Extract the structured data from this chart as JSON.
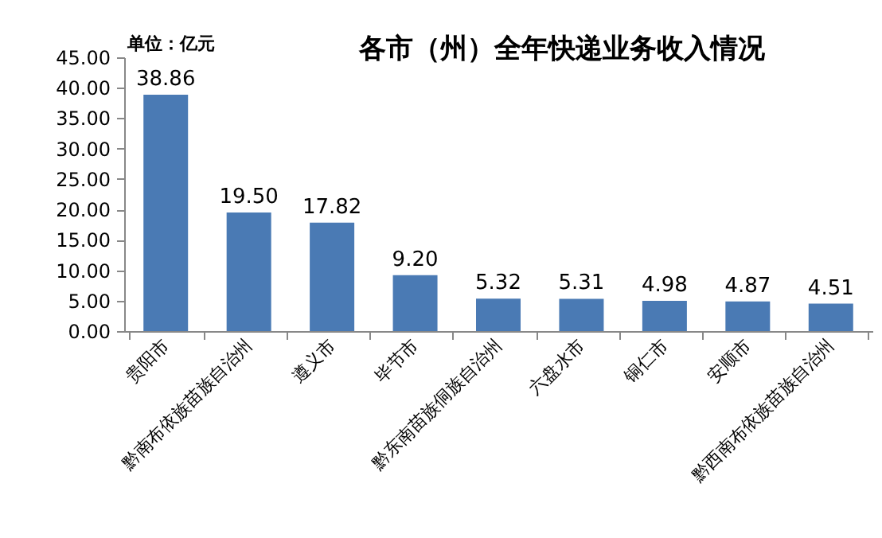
{
  "chart_data": {
    "type": "bar",
    "title": "各市（州）全年快递业务收入情况",
    "annotations": [
      "单位：亿元"
    ],
    "categories": [
      "贵阳市",
      "黔南布依族苗族自治州",
      "遵义市",
      "毕节市",
      "黔东南苗族侗族自治州",
      "六盘水市",
      "铜仁市",
      "安顺市",
      "黔西南布依族苗族自治州"
    ],
    "values": [
      38.86,
      19.5,
      17.82,
      9.2,
      5.32,
      5.31,
      4.98,
      4.87,
      4.51
    ],
    "value_labels": [
      "38.86",
      "19.50",
      "17.82",
      "9.20",
      "5.32",
      "5.31",
      "4.98",
      "4.87",
      "4.51"
    ],
    "color": "#4a7ab4",
    "ylim": [
      0,
      45
    ],
    "yticks": [
      {
        "value": 0,
        "label": "0.00"
      },
      {
        "value": 5,
        "label": "5.00"
      },
      {
        "value": 10,
        "label": "10.00"
      },
      {
        "value": 15,
        "label": "15.00"
      },
      {
        "value": 20,
        "label": "20.00"
      },
      {
        "value": 25,
        "label": "25.00"
      },
      {
        "value": 30,
        "label": "30.00"
      },
      {
        "value": 35,
        "label": "35.00"
      },
      {
        "value": 40,
        "label": "40.00"
      },
      {
        "value": 45,
        "label": "45.00"
      }
    ],
    "grid": false
  }
}
